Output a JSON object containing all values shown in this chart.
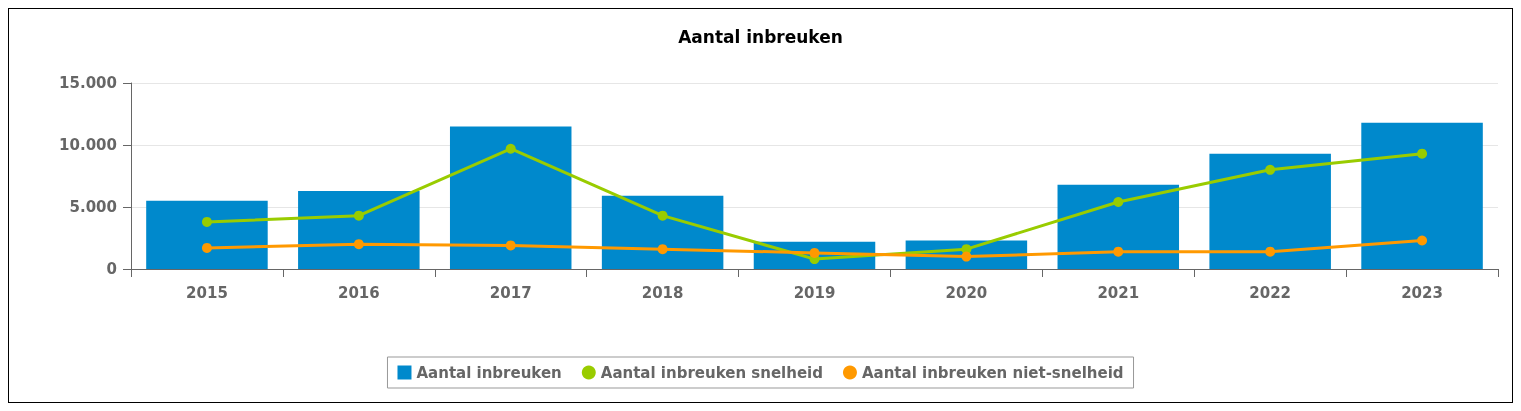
{
  "chart_data": {
    "type": "bar",
    "title": "Aantal inbreuken",
    "categories": [
      "2015",
      "2016",
      "2017",
      "2018",
      "2019",
      "2020",
      "2021",
      "2022",
      "2023"
    ],
    "series": [
      {
        "name": "Aantal inbreuken",
        "color": "#0089cc",
        "values": [
          5500,
          6300,
          11500,
          5900,
          2200,
          2300,
          6800,
          9300,
          11800
        ]
      },
      {
        "name": "Aantal inbreuken snelheid",
        "type": "line",
        "color": "#99cc00",
        "values": [
          3800,
          4300,
          9700,
          4300,
          800,
          1600,
          5400,
          8000,
          9300
        ]
      },
      {
        "name": "Aantal inbreuken niet-snelheid",
        "type": "line",
        "color": "#ff9900",
        "values": [
          1700,
          2000,
          1900,
          1600,
          1300,
          1000,
          1400,
          1400,
          2300
        ]
      }
    ],
    "ylim": [
      0,
      15000
    ],
    "yticks": [
      {
        "value": 0,
        "label": "0"
      },
      {
        "value": 5000,
        "label": "5.000"
      },
      {
        "value": 10000,
        "label": "10.000"
      },
      {
        "value": 15000,
        "label": "15.000"
      }
    ],
    "grid": "y",
    "legend": "bottom",
    "marker": "circle"
  }
}
